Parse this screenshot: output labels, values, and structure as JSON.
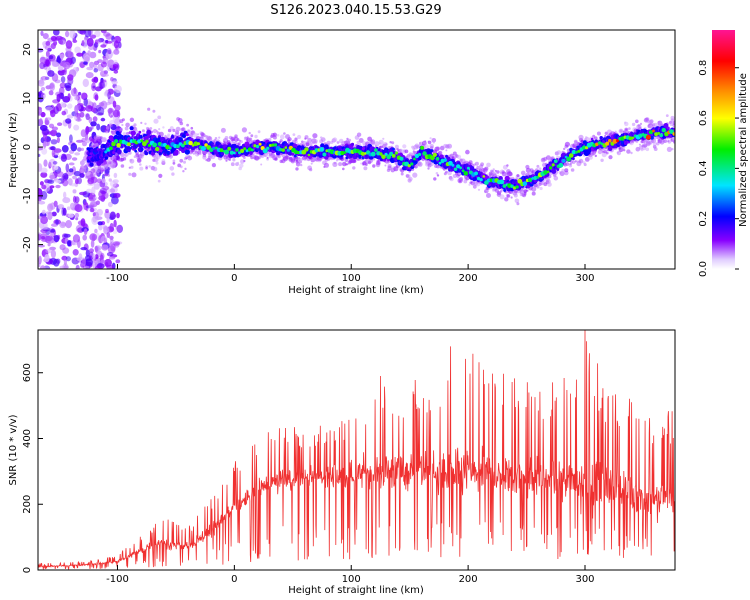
{
  "figure": {
    "title": "S126.2023.040.15.53.G29"
  },
  "chart_data": [
    {
      "type": "heatmap",
      "title": "S126.2023.040.15.53.G29",
      "xlabel": "Height of straight line (km)",
      "ylabel": "Frequency (Hz)",
      "xlim": [
        -168,
        377
      ],
      "ylim": [
        -25,
        24
      ],
      "xticks": [
        -100,
        0,
        100,
        200,
        300
      ],
      "yticks": [
        -20,
        -10,
        0,
        10,
        20
      ],
      "grid": false,
      "colorbar": {
        "label": "Normalized spectral amplitude",
        "range": [
          0,
          0.95
        ],
        "ticks": [
          0.0,
          0.2,
          0.4,
          0.6,
          0.8
        ],
        "colormap": "rainbow (purple-blue-cyan-green-yellow-orange-red-pink)"
      },
      "ridge": {
        "name": "dominant frequency trace",
        "x": [
          -115,
          -100,
          -80,
          -60,
          -40,
          -20,
          0,
          20,
          40,
          60,
          80,
          100,
          120,
          140,
          150,
          160,
          180,
          200,
          220,
          240,
          260,
          280,
          300,
          320,
          340,
          360,
          375
        ],
        "y": [
          -2,
          1,
          1,
          0,
          1,
          0,
          -1,
          0,
          0,
          -1,
          -1,
          -1,
          -1,
          -2,
          -4,
          -1,
          -3,
          -5,
          -7,
          -8,
          -6,
          -3,
          0,
          1,
          2,
          3,
          3
        ]
      }
    },
    {
      "type": "line",
      "xlabel": "Height of straight line (km)",
      "ylabel": "SNR (10 * v/v)",
      "xlim": [
        -168,
        377
      ],
      "ylim": [
        0,
        730
      ],
      "xticks": [
        -100,
        0,
        100,
        200,
        300
      ],
      "yticks": [
        0,
        200,
        400,
        600
      ],
      "grid": false,
      "series": [
        {
          "color": "#f03030",
          "envelope_x": [
            -168,
            -130,
            -100,
            -80,
            -60,
            -40,
            -20,
            0,
            20,
            40,
            60,
            80,
            100,
            120,
            140,
            160,
            180,
            200,
            220,
            240,
            260,
            280,
            300,
            320,
            340,
            360,
            377
          ],
          "envelope_mean": [
            10,
            15,
            25,
            60,
            80,
            70,
            120,
            190,
            250,
            270,
            280,
            280,
            290,
            300,
            300,
            300,
            290,
            300,
            290,
            290,
            280,
            270,
            270,
            250,
            240,
            210,
            220
          ],
          "envelope_peak": [
            20,
            25,
            45,
            110,
            160,
            130,
            220,
            330,
            400,
            460,
            430,
            450,
            470,
            580,
            560,
            600,
            600,
            680,
            600,
            600,
            560,
            580,
            730,
            560,
            520,
            480,
            500
          ],
          "notable_peaks": [
            {
              "x": 300,
              "y": 730
            },
            {
              "x": 185,
              "y": 680
            },
            {
              "x": 125,
              "y": 590
            }
          ]
        }
      ]
    }
  ],
  "colors": {
    "snr_line": "#f03030",
    "axes": "#000000",
    "background": "#ffffff"
  }
}
